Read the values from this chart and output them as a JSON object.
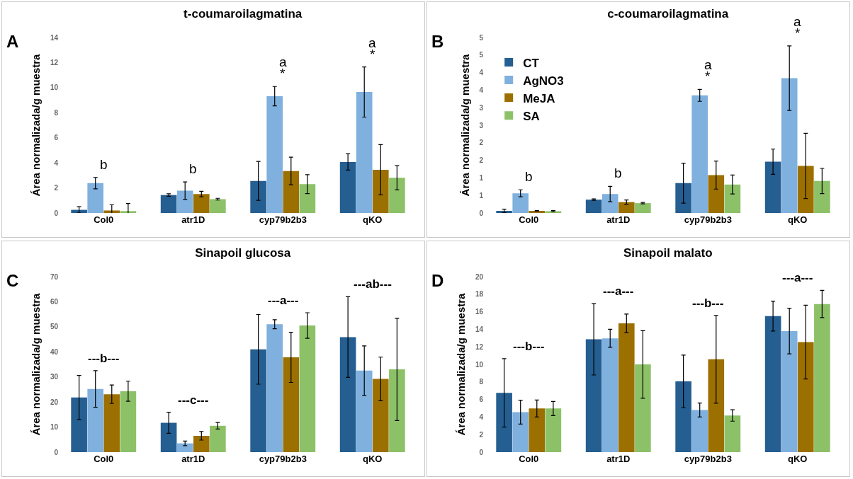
{
  "chart_data": [
    {
      "type": "bar",
      "title": "t-coumaroilagmatina",
      "ylabel": "Área normalizada/g muestra",
      "categories": [
        "Col0",
        "atr1D",
        "cyp79b2b3",
        "qKO"
      ],
      "legend": false,
      "grid": false,
      "ylim": [
        0,
        14
      ],
      "yticks": [
        0,
        2,
        4,
        6,
        8,
        10,
        12,
        14
      ],
      "series": [
        {
          "color": "#255e91",
          "values": [
            0.25,
            1.43,
            2.56,
            4.07
          ],
          "errors": [
            0.25,
            0.1,
            1.55,
            0.65
          ]
        },
        {
          "color": "#7fb0de",
          "values": [
            2.38,
            1.78,
            9.32,
            9.65
          ],
          "errors": [
            0.45,
            0.7,
            0.77,
            2.0
          ]
        },
        {
          "color": "#9c7000",
          "values": [
            0.2,
            1.51,
            3.35,
            3.45
          ],
          "errors": [
            0.45,
            0.22,
            1.1,
            2.0
          ]
        },
        {
          "color": "#8cc168",
          "values": [
            0.15,
            1.1,
            2.3,
            2.81
          ],
          "errors": [
            0.6,
            0.07,
            0.75,
            0.97
          ]
        }
      ],
      "annotations": [
        "A",
        "b",
        "b",
        "*",
        "a",
        "*",
        "a"
      ]
    },
    {
      "type": "bar",
      "title": "c-coumaroilagmatina",
      "ylabel": "Área normalizada/g muestra",
      "categories": [
        "Col0",
        "atr1D",
        "cyp79b2b3",
        "qKO"
      ],
      "legend": "top left",
      "grid": false,
      "ylim": [
        0,
        5
      ],
      "yticks": [
        0,
        {
          "value": 0.5,
          "label": "1"
        },
        1,
        {
          "value": 1.5,
          "label": "2"
        },
        2,
        {
          "value": 2.5,
          "label": "3"
        },
        3,
        {
          "value": 3.5,
          "label": "4"
        },
        4,
        {
          "value": 4.5,
          "label": "5"
        },
        5
      ],
      "series": [
        {
          "name": "CT",
          "color": "#255e91",
          "values": [
            0.06,
            0.38,
            0.85,
            1.46
          ],
          "errors": [
            0.05,
            0.02,
            0.57,
            0.36
          ]
        },
        {
          "name": "AgNO3",
          "color": "#7fb0de",
          "values": [
            0.56,
            0.54,
            3.35,
            3.84
          ],
          "errors": [
            0.1,
            0.22,
            0.17,
            0.92
          ]
        },
        {
          "name": "MeJA",
          "color": "#9c7000",
          "values": [
            0.06,
            0.31,
            1.08,
            1.34
          ],
          "errors": [
            0.01,
            0.06,
            0.4,
            0.93
          ]
        },
        {
          "name": "SA",
          "color": "#8cc168",
          "values": [
            0.05,
            0.28,
            0.81,
            0.91
          ],
          "errors": [
            0.02,
            0.02,
            0.27,
            0.36
          ]
        }
      ],
      "annotations": [
        "B",
        "b",
        "b",
        "*",
        "a",
        "*",
        "a"
      ]
    },
    {
      "type": "bar",
      "title": "Sinapoil glucosa",
      "ylabel": "Área normalizada/g muestra",
      "categories": [
        "Col0",
        "atr1D",
        "cyp79b2b3",
        "qKO"
      ],
      "legend": false,
      "grid": false,
      "ylim": [
        0,
        70
      ],
      "yticks": [
        0,
        10,
        20,
        30,
        40,
        50,
        60,
        70
      ],
      "series": [
        {
          "color": "#255e91",
          "values": [
            21.8,
            11.7,
            41,
            45.9
          ],
          "errors": [
            8.8,
            4.2,
            13.9,
            16.1
          ]
        },
        {
          "color": "#7fb0de",
          "values": [
            25.2,
            3.5,
            51,
            32.5
          ],
          "errors": [
            7.3,
            0.9,
            1.8,
            9.9
          ]
        },
        {
          "color": "#9c7000",
          "values": [
            23.1,
            6.5,
            37.8,
            29.2
          ],
          "errors": [
            3.7,
            1.7,
            10,
            8.7
          ]
        },
        {
          "color": "#8cc168",
          "values": [
            24.3,
            10.5,
            50.5,
            33
          ],
          "errors": [
            4,
            1.3,
            5.1,
            20.4
          ]
        }
      ],
      "annotations": [
        "C",
        "---b---",
        "---c---",
        "---a---",
        "---ab---"
      ]
    },
    {
      "type": "bar",
      "title": "Sinapoil malato",
      "ylabel": "Área normalizada/g muestra",
      "categories": [
        "Col0",
        "atr1D",
        "cyp79b2b3",
        "qKO"
      ],
      "legend": false,
      "grid": false,
      "ylim": [
        0,
        20
      ],
      "yticks": [
        0,
        2,
        4,
        6,
        8,
        10,
        12,
        14,
        16,
        18,
        20
      ],
      "series": [
        {
          "color": "#255e91",
          "values": [
            6.76,
            12.86,
            8.06,
            15.5
          ],
          "errors": [
            3.9,
            4.07,
            3.0,
            1.7
          ]
        },
        {
          "color": "#7fb0de",
          "values": [
            4.56,
            12.97,
            4.8,
            13.8
          ],
          "errors": [
            1.36,
            1.03,
            0.79,
            2.6
          ]
        },
        {
          "color": "#9c7000",
          "values": [
            4.97,
            14.68,
            10.58,
            12.54
          ],
          "errors": [
            0.97,
            1.06,
            5.0,
            4.2
          ]
        },
        {
          "color": "#8cc168",
          "values": [
            4.97,
            9.99,
            4.18,
            16.88
          ],
          "errors": [
            0.8,
            3.85,
            0.65,
            1.55
          ]
        }
      ],
      "annotations": [
        "D",
        "---b---",
        "---a---",
        "---b---",
        "---a---"
      ]
    }
  ]
}
